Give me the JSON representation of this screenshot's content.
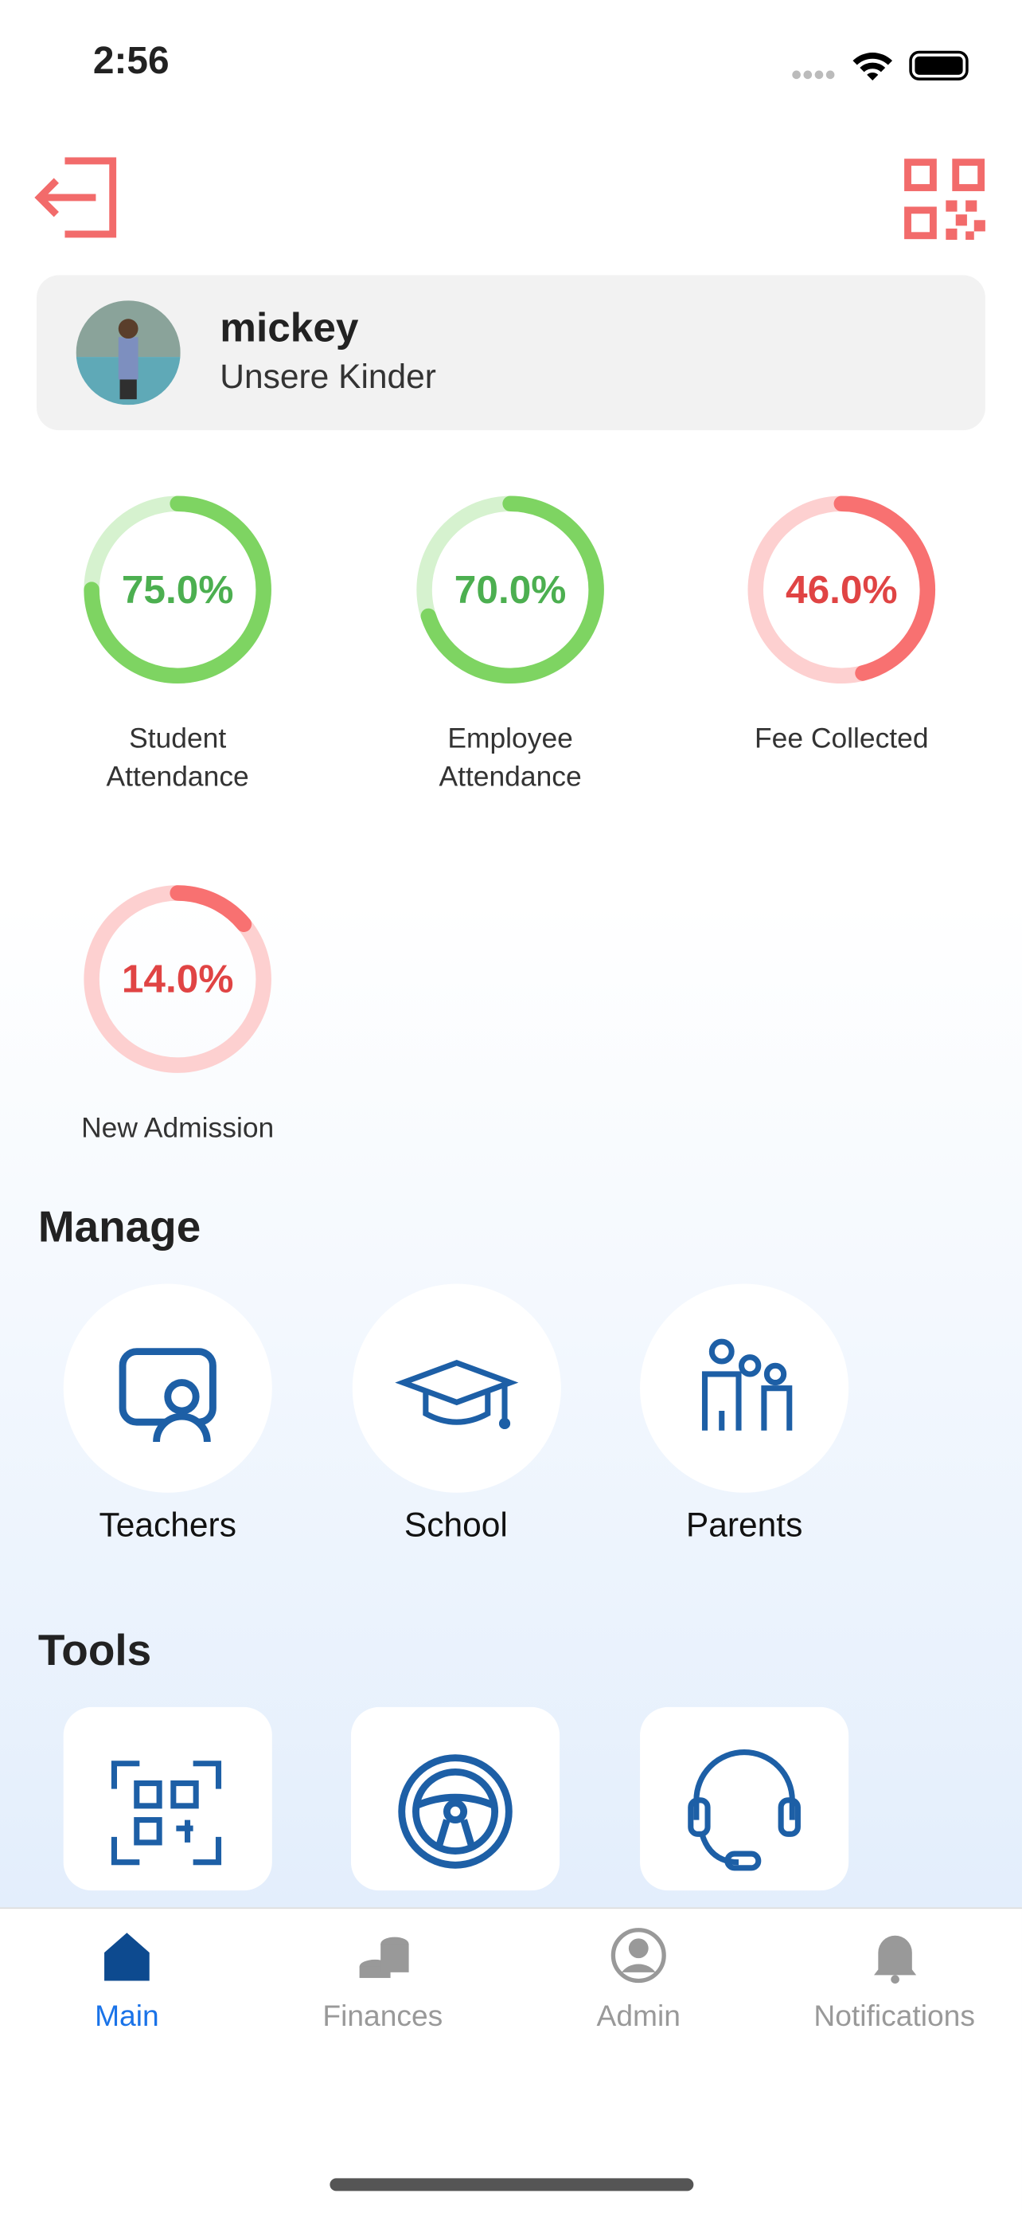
{
  "status_bar": {
    "time": "2:56"
  },
  "profile": {
    "name": "mickey",
    "organization": "Unsere Kinder"
  },
  "stats": [
    {
      "label": "Student Attendance",
      "value": {
        "value": 75,
        "label": "75.0%"
      },
      "color": "#7ed462",
      "track": "#d6f2cf",
      "text_color": "#4caf50"
    },
    {
      "label": "Employee Attendance",
      "value": {
        "value": 70,
        "label": "70.0%"
      },
      "color": "#7ed462",
      "track": "#d6f2cf",
      "text_color": "#4caf50"
    },
    {
      "label": "Fee Collected",
      "value": {
        "value": 46,
        "label": "46.0%"
      },
      "color": "#f87171",
      "track": "#fdd0d0",
      "text_color": "#e04444"
    },
    {
      "label": "New Admission",
      "value": {
        "value": 14,
        "label": "14.0%"
      },
      "color": "#f87171",
      "track": "#fdd0d0",
      "text_color": "#e04444"
    }
  ],
  "manage": {
    "title": "Manage",
    "items": [
      "Teachers",
      "School",
      "Parents"
    ]
  },
  "tools": {
    "title": "Tools"
  },
  "tab_bar": {
    "items": [
      "Main",
      "Finances",
      "Admin",
      "Notifications"
    ],
    "active": 0
  }
}
